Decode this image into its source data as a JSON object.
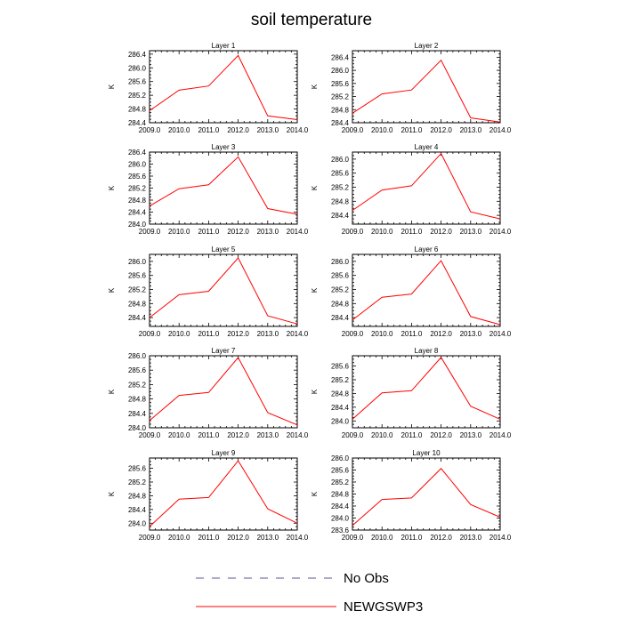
{
  "figure": {
    "title": "soil temperature",
    "ylabel": "K",
    "legend": [
      {
        "label": "No Obs",
        "color": "#5a5a9a",
        "style": "dashed"
      },
      {
        "label": "NEWGSWP3",
        "color": "#ff0000",
        "style": "solid"
      }
    ]
  },
  "chart_data": [
    {
      "type": "line",
      "title": "Layer 1",
      "ylabel": "K",
      "x": [
        2009,
        2010,
        2011,
        2012,
        2013,
        2014
      ],
      "xlim": [
        2009,
        2014
      ],
      "xticks": [
        "2009.0",
        "2010.0",
        "2011.0",
        "2012.0",
        "2013.0",
        "2014.0"
      ],
      "ylim": [
        284.4,
        286.5
      ],
      "yticks": [
        "284.4",
        "284.8",
        "285.2",
        "285.6",
        "286.0",
        "286.4"
      ],
      "series": [
        {
          "name": "NEWGSWP3",
          "color": "#ff0000",
          "values": [
            284.75,
            285.35,
            285.47,
            286.36,
            284.6,
            284.49
          ]
        }
      ]
    },
    {
      "type": "line",
      "title": "Layer 2",
      "ylabel": "K",
      "x": [
        2009,
        2010,
        2011,
        2012,
        2013,
        2014
      ],
      "xlim": [
        2009,
        2014
      ],
      "xticks": [
        "2009.0",
        "2010.0",
        "2011.0",
        "2012.0",
        "2013.0",
        "2014.0"
      ],
      "ylim": [
        284.4,
        286.6
      ],
      "yticks": [
        "284.4",
        "284.8",
        "285.2",
        "285.6",
        "286.0",
        "286.4"
      ],
      "series": [
        {
          "name": "NEWGSWP3",
          "color": "#ff0000",
          "values": [
            284.69,
            285.28,
            285.4,
            286.31,
            284.55,
            284.42
          ]
        }
      ]
    },
    {
      "type": "line",
      "title": "Layer 3",
      "ylabel": "K",
      "x": [
        2009,
        2010,
        2011,
        2012,
        2013,
        2014
      ],
      "xlim": [
        2009,
        2014
      ],
      "xticks": [
        "2009.0",
        "2010.0",
        "2011.0",
        "2012.0",
        "2013.0",
        "2014.0"
      ],
      "ylim": [
        284.0,
        286.4
      ],
      "yticks": [
        "284.0",
        "284.4",
        "284.8",
        "285.2",
        "285.6",
        "286.0",
        "286.4"
      ],
      "series": [
        {
          "name": "NEWGSWP3",
          "color": "#ff0000",
          "values": [
            284.6,
            285.18,
            285.31,
            286.24,
            284.52,
            284.33
          ]
        }
      ]
    },
    {
      "type": "line",
      "title": "Layer 4",
      "ylabel": "K",
      "x": [
        2009,
        2010,
        2011,
        2012,
        2013,
        2014
      ],
      "xlim": [
        2009,
        2014
      ],
      "xticks": [
        "2009.0",
        "2010.0",
        "2011.0",
        "2012.0",
        "2013.0",
        "2014.0"
      ],
      "ylim": [
        284.15,
        286.2
      ],
      "yticks": [
        "284.4",
        "284.8",
        "285.2",
        "285.6",
        "286.0"
      ],
      "series": [
        {
          "name": "NEWGSWP3",
          "color": "#ff0000",
          "values": [
            284.54,
            285.12,
            285.24,
            286.16,
            284.5,
            284.3
          ]
        }
      ]
    },
    {
      "type": "line",
      "title": "Layer 5",
      "ylabel": "K",
      "x": [
        2009,
        2010,
        2011,
        2012,
        2013,
        2014
      ],
      "xlim": [
        2009,
        2014
      ],
      "xticks": [
        "2009.0",
        "2010.0",
        "2011.0",
        "2012.0",
        "2013.0",
        "2014.0"
      ],
      "ylim": [
        284.15,
        286.2
      ],
      "yticks": [
        "284.4",
        "284.8",
        "285.2",
        "285.6",
        "286.0"
      ],
      "series": [
        {
          "name": "NEWGSWP3",
          "color": "#ff0000",
          "values": [
            284.4,
            285.05,
            285.15,
            286.1,
            284.45,
            284.22
          ]
        }
      ]
    },
    {
      "type": "line",
      "title": "Layer 6",
      "ylabel": "K",
      "x": [
        2009,
        2010,
        2011,
        2012,
        2013,
        2014
      ],
      "xlim": [
        2009,
        2014
      ],
      "xticks": [
        "2009.0",
        "2010.0",
        "2011.0",
        "2012.0",
        "2013.0",
        "2014.0"
      ],
      "ylim": [
        284.15,
        286.2
      ],
      "yticks": [
        "284.4",
        "284.8",
        "285.2",
        "285.6",
        "286.0"
      ],
      "series": [
        {
          "name": "NEWGSWP3",
          "color": "#ff0000",
          "values": [
            284.33,
            284.98,
            285.07,
            286.02,
            284.43,
            284.2
          ]
        }
      ]
    },
    {
      "type": "line",
      "title": "Layer 7",
      "ylabel": "K",
      "x": [
        2009,
        2010,
        2011,
        2012,
        2013,
        2014
      ],
      "xlim": [
        2009,
        2014
      ],
      "xticks": [
        "2009.0",
        "2010.0",
        "2011.0",
        "2012.0",
        "2013.0",
        "2014.0"
      ],
      "ylim": [
        284.0,
        286.0
      ],
      "yticks": [
        "284.0",
        "284.4",
        "284.8",
        "285.2",
        "285.6",
        "286.0"
      ],
      "series": [
        {
          "name": "NEWGSWP3",
          "color": "#ff0000",
          "values": [
            284.2,
            284.9,
            284.98,
            285.95,
            284.42,
            284.08
          ]
        }
      ]
    },
    {
      "type": "line",
      "title": "Layer 8",
      "ylabel": "K",
      "x": [
        2009,
        2010,
        2011,
        2012,
        2013,
        2014
      ],
      "xlim": [
        2009,
        2014
      ],
      "xticks": [
        "2009.0",
        "2010.0",
        "2011.0",
        "2012.0",
        "2013.0",
        "2014.0"
      ],
      "ylim": [
        283.8,
        285.9
      ],
      "yticks": [
        "284.0",
        "284.4",
        "284.8",
        "285.2",
        "285.6"
      ],
      "series": [
        {
          "name": "NEWGSWP3",
          "color": "#ff0000",
          "values": [
            284.05,
            284.82,
            284.88,
            285.85,
            284.43,
            284.05
          ]
        }
      ]
    },
    {
      "type": "line",
      "title": "Layer 9",
      "ylabel": "K",
      "x": [
        2009,
        2010,
        2011,
        2012,
        2013,
        2014
      ],
      "xlim": [
        2009,
        2014
      ],
      "xticks": [
        "2009.0",
        "2010.0",
        "2011.0",
        "2012.0",
        "2013.0",
        "2014.0"
      ],
      "ylim": [
        283.8,
        285.9
      ],
      "yticks": [
        "284.0",
        "284.4",
        "284.8",
        "285.2",
        "285.6"
      ],
      "series": [
        {
          "name": "NEWGSWP3",
          "color": "#ff0000",
          "values": [
            283.9,
            284.7,
            284.75,
            285.82,
            284.42,
            284.0
          ]
        }
      ]
    },
    {
      "type": "line",
      "title": "Layer 10",
      "ylabel": "K",
      "x": [
        2009,
        2010,
        2011,
        2012,
        2013,
        2014
      ],
      "xlim": [
        2009,
        2014
      ],
      "xticks": [
        "2009.0",
        "2010.0",
        "2011.0",
        "2012.0",
        "2013.0",
        "2014.0"
      ],
      "ylim": [
        283.6,
        286.0
      ],
      "yticks": [
        "283.6",
        "284.0",
        "284.4",
        "284.8",
        "285.2",
        "285.6",
        "286.0"
      ],
      "series": [
        {
          "name": "NEWGSWP3",
          "color": "#ff0000",
          "values": [
            283.75,
            284.62,
            284.67,
            285.65,
            284.45,
            284.03
          ]
        }
      ]
    }
  ]
}
